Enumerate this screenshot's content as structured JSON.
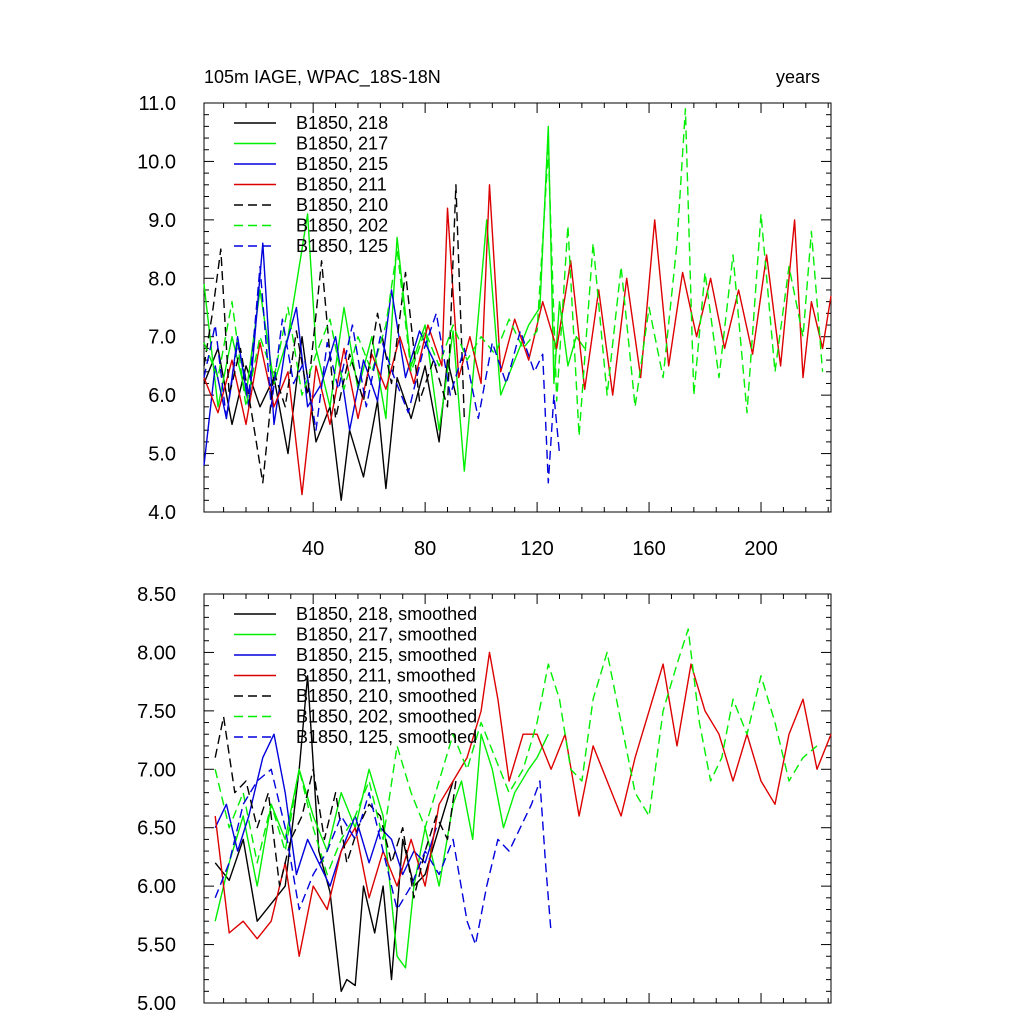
{
  "figure": {
    "title_left": "105m IAGE, WPAC_18S-18N",
    "title_right": "years"
  },
  "colors": {
    "black": "#000000",
    "green": "#00ee00",
    "blue": "#0000dd",
    "red": "#dd0000"
  },
  "chart_data": [
    {
      "type": "line",
      "title": "105m IAGE, WPAC_18S-18N",
      "units_label": "years",
      "xlabel": "",
      "ylabel": "",
      "xlim": [
        1,
        225
      ],
      "ylim": [
        4.0,
        11.0
      ],
      "xticks": [
        40,
        80,
        120,
        160,
        200
      ],
      "xtick_labels": [
        "40",
        "80",
        "120",
        "160",
        "200"
      ],
      "yticks": [
        4.0,
        5.0,
        6.0,
        7.0,
        8.0,
        9.0,
        10.0,
        11.0
      ],
      "ytick_labels": [
        "4.0",
        "5.0",
        "6.0",
        "7.0",
        "8.0",
        "9.0",
        "10.0",
        "11.0"
      ],
      "legend_position": "top-left",
      "series": [
        {
          "name": "B1850, 218",
          "color": "#000000",
          "dash": "solid",
          "x": [
            1,
            6,
            11,
            16,
            21,
            26,
            31,
            36,
            41,
            46,
            50,
            53,
            58,
            63,
            66,
            70,
            75,
            80,
            85,
            88,
            91
          ],
          "y": [
            6.2,
            6.8,
            5.5,
            6.5,
            5.8,
            6.3,
            5.0,
            7.0,
            5.2,
            5.8,
            4.2,
            5.4,
            4.6,
            5.9,
            4.4,
            6.3,
            5.6,
            6.5,
            5.2,
            6.6,
            6.0
          ]
        },
        {
          "name": "B1850, 217",
          "color": "#00ee00",
          "dash": "solid",
          "x": [
            1,
            6,
            11,
            16,
            21,
            26,
            31,
            36,
            38,
            41,
            46,
            51,
            56,
            61,
            66,
            70,
            75,
            80,
            85,
            90,
            94,
            98,
            102,
            107,
            112,
            117,
            121,
            124,
            126,
            128,
            131,
            134,
            137
          ],
          "y": [
            7.9,
            5.8,
            7.0,
            6.0,
            7.8,
            6.2,
            7.0,
            8.5,
            9.1,
            6.8,
            5.8,
            7.5,
            6.1,
            7.0,
            5.6,
            8.7,
            6.5,
            7.2,
            5.4,
            7.1,
            4.7,
            6.8,
            9.0,
            6.0,
            6.6,
            7.2,
            7.5,
            10.6,
            6.2,
            7.6,
            6.5,
            7.0,
            6.8
          ]
        },
        {
          "name": "B1850, 215",
          "color": "#0000dd",
          "dash": "solid",
          "x": [
            1,
            5,
            9,
            13,
            17,
            22,
            26,
            30,
            34,
            38,
            43,
            48,
            53,
            58,
            63,
            68,
            73,
            78,
            84
          ],
          "y": [
            4.8,
            6.5,
            5.6,
            7.0,
            5.8,
            8.6,
            5.5,
            6.8,
            7.5,
            5.8,
            6.2,
            7.0,
            5.4,
            6.6,
            5.9,
            7.8,
            6.3,
            7.1,
            6.5
          ]
        },
        {
          "name": "B1850, 211",
          "color": "#dd0000",
          "dash": "solid",
          "x": [
            1,
            6,
            11,
            16,
            21,
            26,
            31,
            36,
            41,
            46,
            51,
            56,
            61,
            66,
            71,
            76,
            81,
            86,
            88,
            92,
            96,
            100,
            103,
            107,
            112,
            117,
            122,
            127,
            132,
            137,
            142,
            147,
            152,
            157,
            162,
            167,
            172,
            177,
            182,
            187,
            192,
            197,
            202,
            207,
            212,
            215,
            218,
            222,
            225
          ],
          "y": [
            6.3,
            5.7,
            6.6,
            5.5,
            6.9,
            5.8,
            6.4,
            4.3,
            6.5,
            5.5,
            6.8,
            5.6,
            6.7,
            6.1,
            7.0,
            6.2,
            7.2,
            6.5,
            9.2,
            6.3,
            7.0,
            6.2,
            9.6,
            6.4,
            7.3,
            6.6,
            7.6,
            6.8,
            8.3,
            6.1,
            7.8,
            6.0,
            8.0,
            6.3,
            9.0,
            6.5,
            8.1,
            7.0,
            8.0,
            6.8,
            7.8,
            6.7,
            8.4,
            6.5,
            9.0,
            6.3,
            7.6,
            6.8,
            7.7
          ]
        },
        {
          "name": "B1850, 210",
          "color": "#000000",
          "dash": "dashed",
          "x": [
            1,
            4,
            7,
            10,
            14,
            18,
            22,
            26,
            30,
            34,
            38,
            43,
            48,
            53,
            58,
            63,
            68,
            73,
            78,
            83,
            88,
            91,
            94
          ],
          "y": [
            6.5,
            7.4,
            8.5,
            6.0,
            6.8,
            5.7,
            4.5,
            6.4,
            5.8,
            7.1,
            6.0,
            8.3,
            5.6,
            6.7,
            5.9,
            7.4,
            6.2,
            8.1,
            5.9,
            6.6,
            5.8,
            9.6,
            5.6
          ]
        },
        {
          "name": "B1850, 202",
          "color": "#00ee00",
          "dash": "dashed",
          "x": [
            1,
            6,
            11,
            16,
            21,
            26,
            31,
            36,
            41,
            46,
            51,
            56,
            61,
            66,
            70,
            75,
            80,
            85,
            90,
            95,
            100,
            105,
            110,
            115,
            120,
            124,
            127,
            131,
            135,
            140,
            145,
            150,
            155,
            160,
            165,
            170,
            173,
            176,
            180,
            185,
            190,
            195,
            200,
            205,
            210,
            215,
            218,
            222
          ],
          "y": [
            6.9,
            6.3,
            7.6,
            5.8,
            7.0,
            6.3,
            7.5,
            6.0,
            6.7,
            7.3,
            6.1,
            7.0,
            6.4,
            7.2,
            8.5,
            6.4,
            7.1,
            6.5,
            7.2,
            6.6,
            7.0,
            6.7,
            7.3,
            6.8,
            7.1,
            10.2,
            5.9,
            8.9,
            5.3,
            8.6,
            6.0,
            8.2,
            5.8,
            7.5,
            6.3,
            8.6,
            10.9,
            6.0,
            8.1,
            6.3,
            8.4,
            5.7,
            9.1,
            6.4,
            8.2,
            7.0,
            8.8,
            6.4
          ]
        },
        {
          "name": "B1850, 125",
          "color": "#0000dd",
          "dash": "dashed",
          "x": [
            1,
            5,
            9,
            13,
            17,
            21,
            25,
            29,
            33,
            37,
            41,
            45,
            49,
            54,
            59,
            64,
            69,
            74,
            79,
            84,
            89,
            94,
            99,
            104,
            109,
            114,
            119,
            122,
            124,
            126,
            128
          ],
          "y": [
            6.3,
            7.2,
            5.6,
            6.9,
            6.0,
            8.2,
            5.8,
            7.3,
            6.2,
            6.6,
            5.4,
            6.9,
            6.1,
            7.2,
            5.8,
            7.0,
            6.3,
            5.7,
            6.7,
            7.4,
            6.0,
            6.8,
            5.6,
            6.9,
            6.2,
            7.1,
            6.4,
            6.7,
            4.5,
            6.0,
            5.0
          ]
        }
      ]
    },
    {
      "type": "line",
      "title": "",
      "xlabel": "",
      "ylabel": "",
      "xlim": [
        1,
        225
      ],
      "ylim": [
        5.0,
        8.5
      ],
      "xticks": [
        40,
        80,
        120,
        160,
        200
      ],
      "yticks": [
        5.0,
        5.5,
        6.0,
        6.5,
        7.0,
        7.5,
        8.0,
        8.5
      ],
      "ytick_labels": [
        "5.00",
        "5.50",
        "6.00",
        "6.50",
        "7.00",
        "7.50",
        "8.00",
        "8.50"
      ],
      "legend_position": "top-left",
      "series": [
        {
          "name": "B1850, 218, smoothed",
          "color": "#000000",
          "dash": "solid",
          "x": [
            5,
            10,
            15,
            20,
            25,
            30,
            35,
            38,
            42,
            46,
            50,
            52,
            55,
            58,
            62,
            65,
            68,
            72,
            76,
            80,
            85,
            90
          ],
          "y": [
            6.2,
            6.05,
            6.4,
            5.7,
            5.85,
            6.0,
            7.0,
            7.8,
            6.3,
            5.95,
            5.1,
            5.2,
            5.15,
            6.0,
            5.6,
            6.0,
            5.2,
            6.4,
            6.0,
            6.1,
            6.5,
            6.9
          ]
        },
        {
          "name": "B1850, 217, smoothed",
          "color": "#00ee00",
          "dash": "solid",
          "x": [
            5,
            10,
            15,
            20,
            25,
            30,
            35,
            40,
            45,
            50,
            55,
            60,
            65,
            70,
            73,
            76,
            80,
            85,
            90,
            93,
            97,
            100,
            104,
            108,
            112,
            117,
            120,
            124
          ],
          "y": [
            5.7,
            6.2,
            6.6,
            6.0,
            6.7,
            6.4,
            7.0,
            6.6,
            6.3,
            6.8,
            6.5,
            7.0,
            6.6,
            5.4,
            5.3,
            6.0,
            6.5,
            6.0,
            6.7,
            6.9,
            6.4,
            7.3,
            7.0,
            6.5,
            6.8,
            7.0,
            7.1,
            7.3
          ]
        },
        {
          "name": "B1850, 215, smoothed",
          "color": "#0000dd",
          "dash": "solid",
          "x": [
            5,
            9,
            13,
            17,
            22,
            26,
            30,
            34,
            38,
            42,
            46,
            50,
            55,
            60,
            64,
            68,
            72,
            76,
            80,
            84
          ],
          "y": [
            6.5,
            6.7,
            6.3,
            6.6,
            7.1,
            7.3,
            6.8,
            6.1,
            6.4,
            6.2,
            6.0,
            6.3,
            6.6,
            6.2,
            6.5,
            6.4,
            6.1,
            6.3,
            6.2,
            6.5
          ]
        },
        {
          "name": "B1850, 211, smoothed",
          "color": "#dd0000",
          "dash": "solid",
          "x": [
            5,
            10,
            15,
            20,
            25,
            30,
            35,
            40,
            45,
            50,
            55,
            60,
            65,
            70,
            75,
            80,
            85,
            90,
            95,
            100,
            103,
            106,
            110,
            115,
            120,
            125,
            130,
            135,
            140,
            145,
            150,
            155,
            160,
            165,
            170,
            175,
            180,
            185,
            190,
            195,
            200,
            205,
            210,
            215,
            220,
            225
          ],
          "y": [
            6.6,
            5.6,
            5.7,
            5.55,
            5.7,
            6.2,
            5.4,
            6.0,
            5.8,
            6.3,
            6.5,
            5.9,
            6.3,
            6.0,
            6.4,
            6.0,
            6.7,
            6.9,
            7.1,
            7.5,
            8.0,
            7.6,
            6.9,
            7.3,
            7.3,
            7.0,
            7.3,
            6.6,
            7.2,
            6.9,
            6.6,
            7.1,
            7.5,
            7.9,
            7.2,
            7.9,
            7.5,
            7.3,
            6.9,
            7.3,
            6.9,
            6.7,
            7.3,
            7.6,
            7.0,
            7.3
          ]
        },
        {
          "name": "B1850, 210, smoothed",
          "color": "#000000",
          "dash": "dashed",
          "x": [
            5,
            8,
            12,
            16,
            20,
            24,
            28,
            32,
            36,
            40,
            44,
            48,
            52,
            56,
            60,
            64,
            68,
            72,
            76,
            80,
            84,
            88,
            91
          ],
          "y": [
            7.1,
            7.45,
            6.8,
            6.9,
            6.5,
            6.8,
            6.0,
            6.4,
            6.6,
            7.0,
            6.4,
            6.8,
            6.2,
            6.5,
            6.7,
            6.6,
            6.2,
            6.5,
            5.9,
            6.3,
            6.6,
            6.4,
            6.9
          ]
        },
        {
          "name": "B1850, 202, smoothed",
          "color": "#00ee00",
          "dash": "dashed",
          "x": [
            5,
            10,
            15,
            20,
            25,
            30,
            35,
            40,
            45,
            50,
            55,
            60,
            65,
            70,
            75,
            80,
            85,
            90,
            95,
            100,
            105,
            110,
            115,
            120,
            124,
            128,
            132,
            136,
            140,
            145,
            150,
            155,
            160,
            165,
            170,
            174,
            178,
            182,
            186,
            190,
            195,
            200,
            205,
            210,
            215,
            220
          ],
          "y": [
            7.0,
            6.5,
            6.8,
            6.2,
            6.7,
            6.3,
            7.0,
            6.5,
            6.1,
            6.4,
            6.6,
            6.9,
            6.4,
            7.2,
            6.8,
            6.5,
            6.9,
            7.3,
            7.0,
            7.4,
            7.1,
            6.8,
            7.0,
            7.4,
            7.9,
            7.6,
            7.0,
            6.9,
            7.6,
            8.0,
            7.4,
            6.8,
            6.6,
            7.5,
            7.9,
            8.2,
            7.4,
            6.9,
            7.1,
            7.6,
            7.3,
            7.8,
            7.4,
            6.9,
            7.1,
            7.2
          ]
        },
        {
          "name": "B1850, 125, smoothed",
          "color": "#0000dd",
          "dash": "dashed",
          "x": [
            5,
            10,
            15,
            20,
            25,
            30,
            35,
            40,
            45,
            50,
            55,
            60,
            65,
            70,
            75,
            80,
            85,
            90,
            95,
            98,
            102,
            106,
            110,
            114,
            118,
            121,
            123,
            125
          ],
          "y": [
            5.9,
            6.2,
            6.7,
            6.9,
            7.0,
            6.5,
            5.8,
            6.1,
            6.3,
            6.6,
            6.4,
            6.8,
            6.3,
            5.8,
            6.0,
            6.3,
            6.1,
            6.4,
            5.7,
            5.5,
            6.0,
            6.4,
            6.3,
            6.5,
            6.7,
            6.9,
            6.2,
            5.6
          ]
        }
      ]
    }
  ]
}
